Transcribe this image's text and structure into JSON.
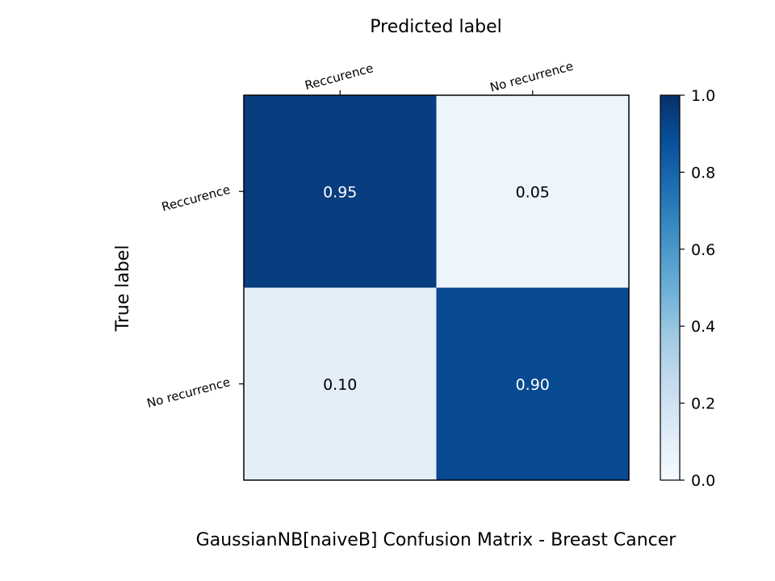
{
  "chart_data": {
    "type": "heatmap",
    "title": "GaussianNB[naiveB]  Confusion Matrix - Breast Cancer",
    "xlabel": "Predicted label",
    "ylabel": "True label",
    "x_categories": [
      "Reccurence",
      "No recurrence"
    ],
    "y_categories": [
      "Reccurence",
      "No recurrence"
    ],
    "values": [
      [
        0.95,
        0.05
      ],
      [
        0.1,
        0.9
      ]
    ],
    "cell_labels": [
      [
        "0.95",
        "0.05"
      ],
      [
        "0.10",
        "0.90"
      ]
    ],
    "colormap": "Blues",
    "colorbar": {
      "range": [
        0.0,
        1.0
      ],
      "ticks": [
        "0.0",
        "0.2",
        "0.4",
        "0.6",
        "0.8",
        "1.0"
      ]
    },
    "grid": false,
    "x_axis_position": "top"
  }
}
